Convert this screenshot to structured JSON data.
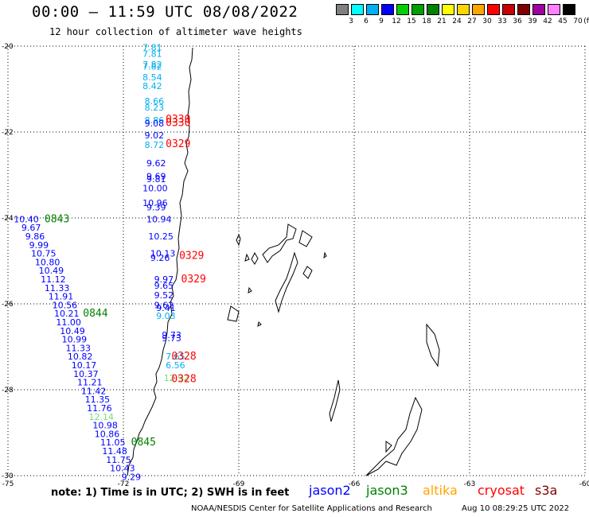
{
  "header": {
    "title": "00:00 – 11:59 UTC 08/08/2022",
    "subtitle": "12 hour collection of altimeter wave heights"
  },
  "legend": {
    "labels": [
      "3",
      "6",
      "9",
      "12",
      "15",
      "18",
      "21",
      "24",
      "27",
      "30",
      "33",
      "36",
      "39",
      "42",
      "45",
      "70"
    ],
    "colors": [
      "#808080",
      "#00ffff",
      "#00b0f0",
      "#0000ff",
      "#00d000",
      "#00a000",
      "#008000",
      "#ffff00",
      "#ffd700",
      "#ffa500",
      "#ff0000",
      "#c80000",
      "#800000",
      "#a000a0",
      "#ff80ff",
      "#000000"
    ],
    "unit": "(ft)"
  },
  "map": {
    "lat_labels": [
      "-20",
      "-22",
      "-24",
      "-26",
      "-28",
      "-30"
    ],
    "lon_labels": [
      "-75",
      "-72",
      "-69",
      "-66",
      "-63",
      "-60"
    ],
    "grid": "dotted"
  },
  "observations": [
    {
      "text": "7.81",
      "color": "#00b0f0",
      "lon": -71.5,
      "lat": -20.1
    },
    {
      "text": "7.81",
      "color": "#00b0f0",
      "lon": -71.5,
      "lat": -20.25
    },
    {
      "text": "7.82",
      "color": "#00b0f0",
      "lon": -71.5,
      "lat": -20.5
    },
    {
      "text": "7.82",
      "color": "#00b0f0",
      "lon": -71.5,
      "lat": -20.55
    },
    {
      "text": "8.54",
      "color": "#00b0f0",
      "lon": -71.5,
      "lat": -20.8
    },
    {
      "text": "8.42",
      "color": "#00b0f0",
      "lon": -71.5,
      "lat": -21.0
    },
    {
      "text": "8.66",
      "color": "#00b0f0",
      "lon": -71.45,
      "lat": -21.35
    },
    {
      "text": "8.23",
      "color": "#00b0f0",
      "lon": -71.45,
      "lat": -21.5
    },
    {
      "text": "8.86",
      "color": "#00b0f0",
      "lon": -71.45,
      "lat": -21.8
    },
    {
      "text": "9.08",
      "color": "#0000ff",
      "lon": -71.45,
      "lat": -21.87
    },
    {
      "text": "9.02",
      "color": "#0000ff",
      "lon": -71.45,
      "lat": -22.15
    },
    {
      "text": "8.72",
      "color": "#00b0f0",
      "lon": -71.45,
      "lat": -22.37
    },
    {
      "text": "9.62",
      "color": "#0000ff",
      "lon": -71.4,
      "lat": -22.8
    },
    {
      "text": "9.69",
      "color": "#0000ff",
      "lon": -71.4,
      "lat": -23.1
    },
    {
      "text": "9.81",
      "color": "#0000ff",
      "lon": -71.4,
      "lat": -23.17
    },
    {
      "text": "10.00",
      "color": "#0000ff",
      "lon": -71.5,
      "lat": -23.38
    },
    {
      "text": "10.96",
      "color": "#0000ff",
      "lon": -71.5,
      "lat": -23.72
    },
    {
      "text": "9.39",
      "color": "#0000ff",
      "lon": -71.4,
      "lat": -23.82
    },
    {
      "text": "10.94",
      "color": "#0000ff",
      "lon": -71.4,
      "lat": -24.1
    },
    {
      "text": "10.25",
      "color": "#0000ff",
      "lon": -71.35,
      "lat": -24.5
    },
    {
      "text": "10.13",
      "color": "#0000ff",
      "lon": -71.3,
      "lat": -24.9
    },
    {
      "text": "9.26",
      "color": "#0000ff",
      "lon": -71.3,
      "lat": -25.0
    },
    {
      "text": "9.97",
      "color": "#0000ff",
      "lon": -71.2,
      "lat": -25.5
    },
    {
      "text": "9.65",
      "color": "#0000ff",
      "lon": -71.2,
      "lat": -25.65
    },
    {
      "text": "9.52",
      "color": "#0000ff",
      "lon": -71.2,
      "lat": -25.87
    },
    {
      "text": "9.62",
      "color": "#0000ff",
      "lon": -71.2,
      "lat": -26.1
    },
    {
      "text": "9.41",
      "color": "#0000ff",
      "lon": -71.15,
      "lat": -26.17
    },
    {
      "text": "9.03",
      "color": "#00b0f0",
      "lon": -71.15,
      "lat": -26.35
    },
    {
      "text": "9.73",
      "color": "#0000ff",
      "lon": -71.0,
      "lat": -26.8
    },
    {
      "text": "9.73",
      "color": "#0000ff",
      "lon": -71.0,
      "lat": -26.87
    },
    {
      "text": "7.65",
      "color": "#00b0f0",
      "lon": -70.9,
      "lat": -27.3
    },
    {
      "text": "6.56",
      "color": "#00b0f0",
      "lon": -70.9,
      "lat": -27.5
    },
    {
      "text": "12.92",
      "color": "#70e070",
      "lon": -70.95,
      "lat": -27.8
    },
    {
      "text": "10.40",
      "color": "#0000ff",
      "lon": -74.85,
      "lat": -24.1
    },
    {
      "text": "9.67",
      "color": "#0000ff",
      "lon": -74.65,
      "lat": -24.3
    },
    {
      "text": "9.86",
      "color": "#0000ff",
      "lon": -74.55,
      "lat": -24.5
    },
    {
      "text": "9.99",
      "color": "#0000ff",
      "lon": -74.45,
      "lat": -24.7
    },
    {
      "text": "10.75",
      "color": "#0000ff",
      "lon": -74.4,
      "lat": -24.9
    },
    {
      "text": "10.80",
      "color": "#0000ff",
      "lon": -74.3,
      "lat": -25.1
    },
    {
      "text": "10.49",
      "color": "#0000ff",
      "lon": -74.2,
      "lat": -25.3
    },
    {
      "text": "11.12",
      "color": "#0000ff",
      "lon": -74.15,
      "lat": -25.5
    },
    {
      "text": "11.33",
      "color": "#0000ff",
      "lon": -74.05,
      "lat": -25.7
    },
    {
      "text": "11.91",
      "color": "#0000ff",
      "lon": -73.95,
      "lat": -25.9
    },
    {
      "text": "10.56",
      "color": "#0000ff",
      "lon": -73.85,
      "lat": -26.1
    },
    {
      "text": "10.21",
      "color": "#0000ff",
      "lon": -73.8,
      "lat": -26.3
    },
    {
      "text": "11.00",
      "color": "#0000ff",
      "lon": -73.75,
      "lat": -26.5
    },
    {
      "text": "10.49",
      "color": "#0000ff",
      "lon": -73.65,
      "lat": -26.7
    },
    {
      "text": "10.99",
      "color": "#0000ff",
      "lon": -73.6,
      "lat": -26.9
    },
    {
      "text": "11.33",
      "color": "#0000ff",
      "lon": -73.5,
      "lat": -27.1
    },
    {
      "text": "10.82",
      "color": "#0000ff",
      "lon": -73.45,
      "lat": -27.3
    },
    {
      "text": "10.17",
      "color": "#0000ff",
      "lon": -73.35,
      "lat": -27.5
    },
    {
      "text": "10.37",
      "color": "#0000ff",
      "lon": -73.3,
      "lat": -27.7
    },
    {
      "text": "11.21",
      "color": "#0000ff",
      "lon": -73.2,
      "lat": -27.9
    },
    {
      "text": "11.42",
      "color": "#0000ff",
      "lon": -73.1,
      "lat": -28.1
    },
    {
      "text": "11.35",
      "color": "#0000ff",
      "lon": -73.0,
      "lat": -28.3
    },
    {
      "text": "11.76",
      "color": "#0000ff",
      "lon": -72.95,
      "lat": -28.5
    },
    {
      "text": "12.14",
      "color": "#70e070",
      "lon": -72.9,
      "lat": -28.7
    },
    {
      "text": "10.98",
      "color": "#0000ff",
      "lon": -72.8,
      "lat": -28.9
    },
    {
      "text": "10.86",
      "color": "#0000ff",
      "lon": -72.75,
      "lat": -29.1
    },
    {
      "text": "11.05",
      "color": "#0000ff",
      "lon": -72.6,
      "lat": -29.3
    },
    {
      "text": "11.48",
      "color": "#0000ff",
      "lon": -72.55,
      "lat": -29.5
    },
    {
      "text": "11.75",
      "color": "#0000ff",
      "lon": -72.45,
      "lat": -29.7
    },
    {
      "text": "10.43",
      "color": "#0000ff",
      "lon": -72.35,
      "lat": -29.9
    },
    {
      "text": "9.29",
      "color": "#0000ff",
      "lon": -72.05,
      "lat": -30.1
    }
  ],
  "times": [
    {
      "text": "0330",
      "color": "#ff0000",
      "lon": -70.9,
      "lat": -21.78
    },
    {
      "text": "0330",
      "color": "#ff0000",
      "lon": -70.9,
      "lat": -21.86
    },
    {
      "text": "0329",
      "color": "#ff0000",
      "lon": -70.9,
      "lat": -22.35
    },
    {
      "text": "0329",
      "color": "#ff0000",
      "lon": -70.55,
      "lat": -24.95
    },
    {
      "text": "0329",
      "color": "#ff0000",
      "lon": -70.5,
      "lat": -25.5
    },
    {
      "text": "0328",
      "color": "#ff0000",
      "lon": -70.75,
      "lat": -27.3
    },
    {
      "text": "0328",
      "color": "#ff0000",
      "lon": -70.75,
      "lat": -27.82
    },
    {
      "text": "0843",
      "color": "#008000",
      "lon": -74.05,
      "lat": -24.1
    },
    {
      "text": "0844",
      "color": "#008000",
      "lon": -73.05,
      "lat": -26.3
    },
    {
      "text": "0845",
      "color": "#008000",
      "lon": -71.8,
      "lat": -29.3
    }
  ],
  "footer": {
    "note": "note:  1) Time is in UTC;  2) SWH is in feet",
    "satellites": [
      {
        "name": "jason2",
        "color": "#0000ff"
      },
      {
        "name": "jason3",
        "color": "#008000"
      },
      {
        "name": "altika",
        "color": "#ffa500"
      },
      {
        "name": "cryosat",
        "color": "#ff0000"
      },
      {
        "name": "s3a",
        "color": "#800000"
      }
    ],
    "credit": "NOAA/NESDIS Center for Satellite Applications and Research",
    "timestamp": "Aug 10 08:29:25 UTC 2022"
  }
}
